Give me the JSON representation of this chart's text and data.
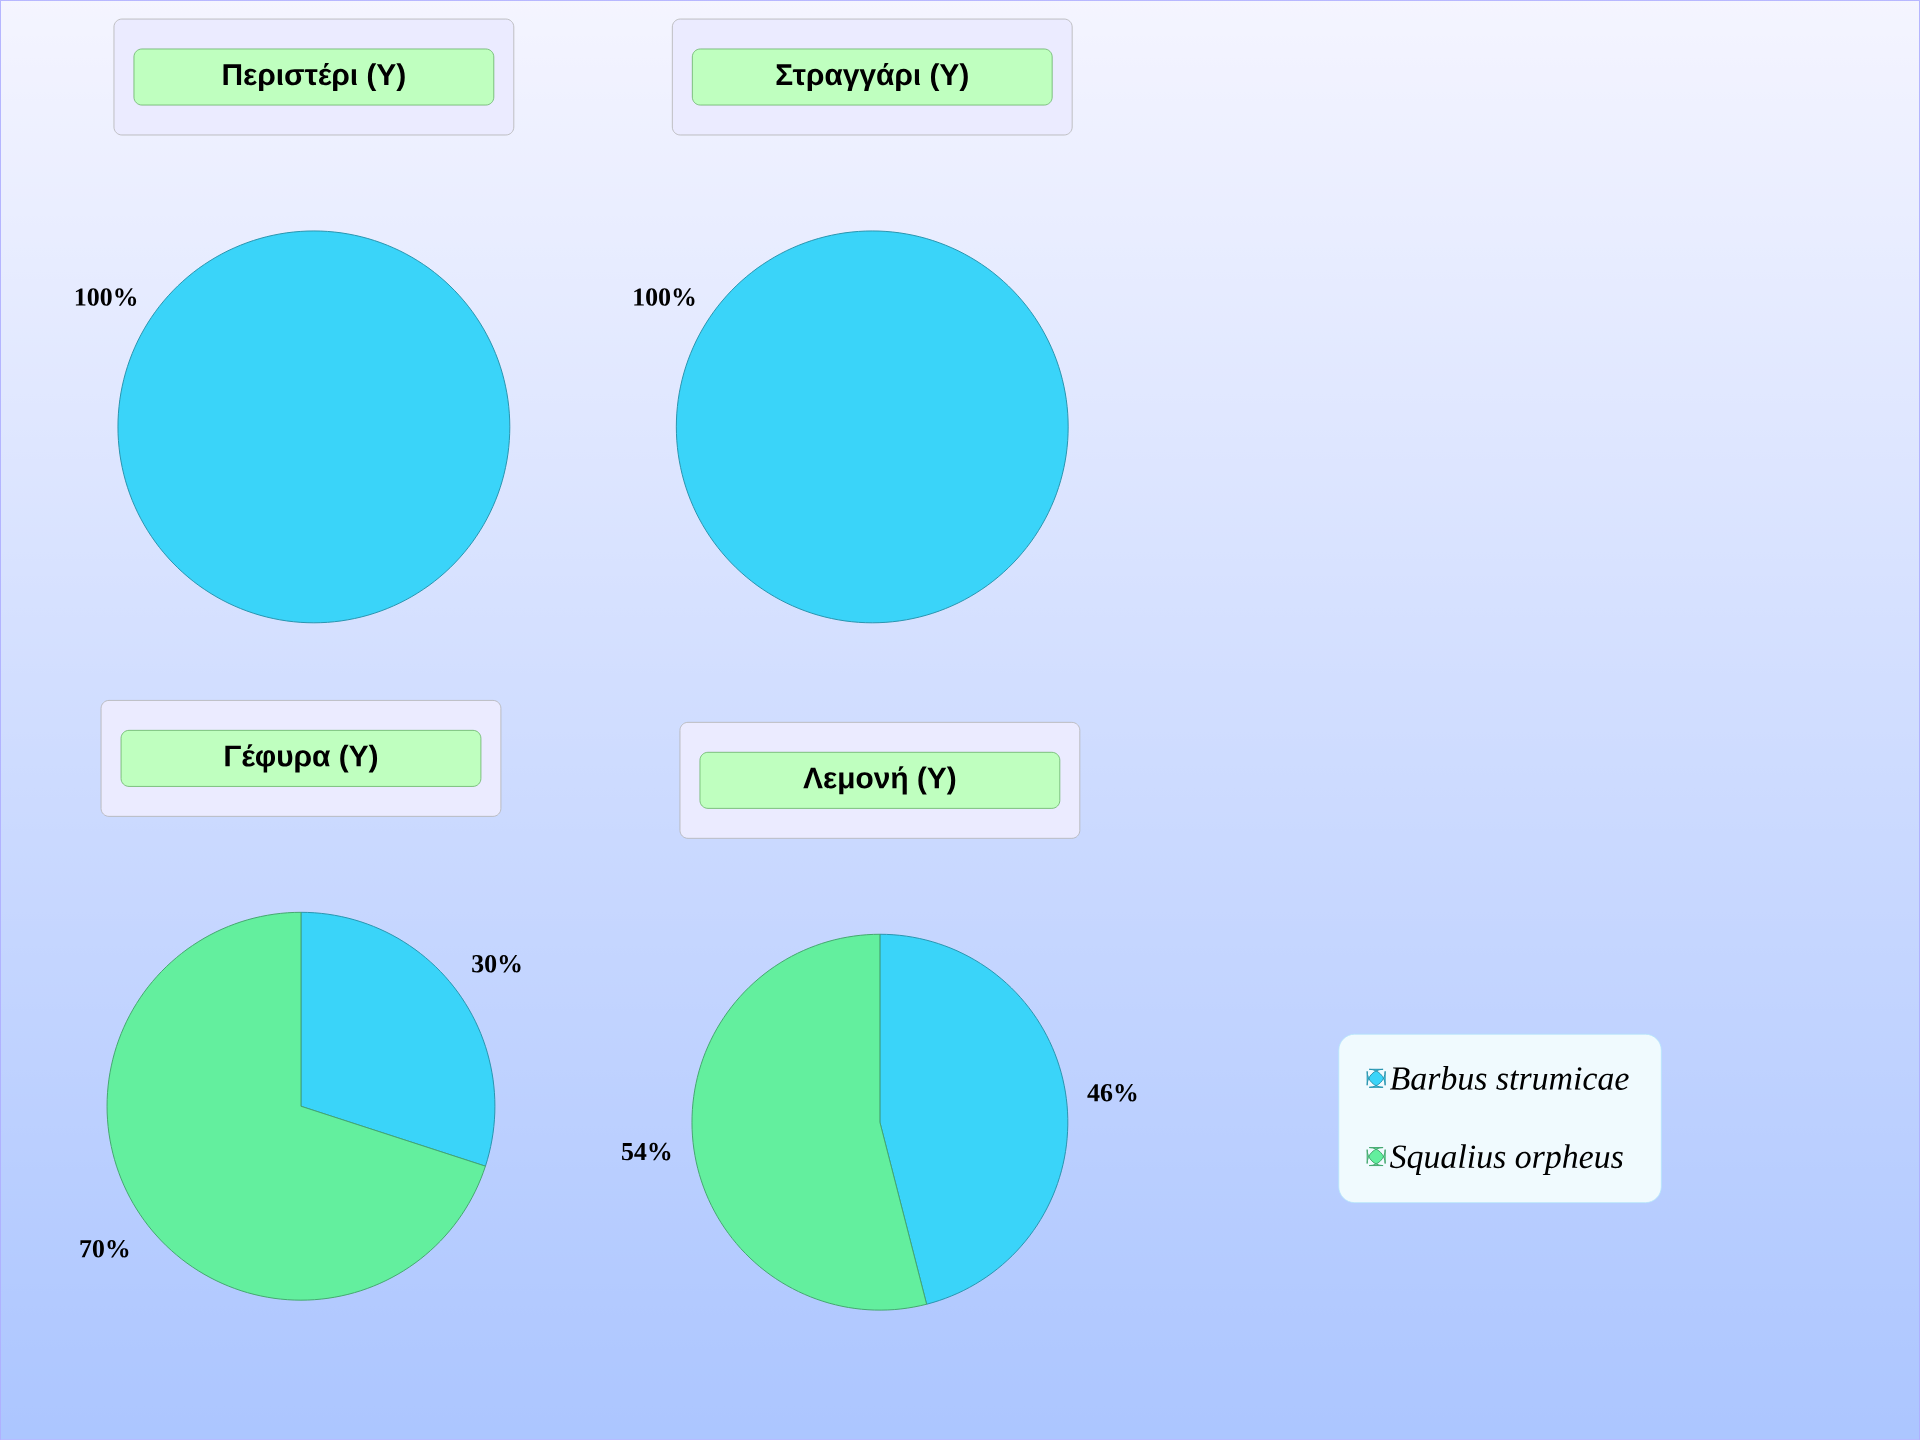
{
  "chart_data": [
    {
      "type": "pie",
      "title": "Περιστέρι (Υ)",
      "categories": [
        null
      ],
      "values": [
        100
      ],
      "colors": [
        "#3ad4f9"
      ],
      "value_labels": [
        "100%"
      ],
      "legend": false
    },
    {
      "type": "pie",
      "title": "Στραγγάρι (Υ)",
      "categories": [
        null
      ],
      "values": [
        100
      ],
      "colors": [
        "#3ad4f9"
      ],
      "value_labels": [
        "100%"
      ],
      "legend": false
    },
    {
      "type": "pie",
      "title": "Γέφυρα (Υ)",
      "categories": [
        null,
        null
      ],
      "values": [
        30,
        70
      ],
      "colors": [
        "#3ad4f9",
        "#63ef9e"
      ],
      "value_labels": [
        "30%",
        "70%"
      ],
      "legend": false
    },
    {
      "type": "pie",
      "title": "Λεμονή (Υ)",
      "categories": [
        "Barbus strumicae",
        "Squalius orpheus"
      ],
      "values": [
        46,
        54
      ],
      "colors": [
        "#3ad4f9",
        "#63ef9e"
      ],
      "value_labels": [
        "46%",
        "54%"
      ],
      "legend": "right"
    }
  ]
}
